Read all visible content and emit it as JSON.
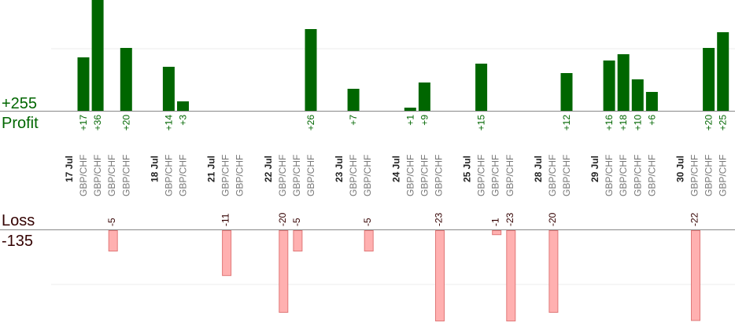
{
  "chart_data": {
    "type": "bar",
    "profit_total": "+255",
    "profit_label": "Profit",
    "loss_total": "-135",
    "loss_label": "Loss",
    "colors": {
      "profit": "#006600",
      "loss": "#ffb0b0",
      "loss_stroke": "#e07878",
      "axis": "#888888",
      "grid": "#eeeeee"
    },
    "days": [
      {
        "date": "17 Jul",
        "trades": [
          {
            "pair": "GBP/CHF",
            "value": 17,
            "label": "+17"
          },
          {
            "pair": "GBP/CHF",
            "value": 36,
            "label": "+36"
          },
          {
            "pair": "GBP/CHF",
            "value": -5,
            "label": "-5"
          },
          {
            "pair": "GBP/CHF",
            "value": 20,
            "label": "+20"
          }
        ]
      },
      {
        "date": "18 Jul",
        "trades": [
          {
            "pair": "GBP/CHF",
            "value": 14,
            "label": "+14"
          },
          {
            "pair": "GBP/CHF",
            "value": 3,
            "label": "+3"
          }
        ]
      },
      {
        "date": "21 Jul",
        "trades": [
          {
            "pair": "GBP/CHF",
            "value": -11,
            "label": "-11"
          },
          {
            "pair": "GBP/CHF",
            "value": 0,
            "label": ""
          }
        ]
      },
      {
        "date": "22 Jul",
        "trades": [
          {
            "pair": "GBP/CHF",
            "value": -20,
            "label": "-20"
          },
          {
            "pair": "GBP/CHF",
            "value": -5,
            "label": "-5"
          },
          {
            "pair": "GBP/CHF",
            "value": 26,
            "label": "+26"
          }
        ]
      },
      {
        "date": "23 Jul",
        "trades": [
          {
            "pair": "GBP/CHF",
            "value": 7,
            "label": "+7"
          },
          {
            "pair": "GBP/CHF",
            "value": -5,
            "label": "-5"
          }
        ]
      },
      {
        "date": "24 Jul",
        "trades": [
          {
            "pair": "GBP/CHF",
            "value": 1,
            "label": "+1"
          },
          {
            "pair": "GBP/CHF",
            "value": 9,
            "label": "+9"
          },
          {
            "pair": "GBP/CHF",
            "value": -23,
            "label": "-23"
          }
        ]
      },
      {
        "date": "25 Jul",
        "trades": [
          {
            "pair": "GBP/CHF",
            "value": 15,
            "label": "+15"
          },
          {
            "pair": "GBP/CHF",
            "value": -1,
            "label": "-1"
          },
          {
            "pair": "GBP/CHF",
            "value": -23,
            "label": "-23"
          }
        ]
      },
      {
        "date": "28 Jul",
        "trades": [
          {
            "pair": "GBP/CHF",
            "value": -20,
            "label": "-20"
          },
          {
            "pair": "GBP/CHF",
            "value": 12,
            "label": "+12"
          }
        ]
      },
      {
        "date": "29 Jul",
        "trades": [
          {
            "pair": "GBP/CHF",
            "value": 16,
            "label": "+16"
          },
          {
            "pair": "GBP/CHF",
            "value": 18,
            "label": "+18"
          },
          {
            "pair": "GBP/CHF",
            "value": 10,
            "label": "+10"
          },
          {
            "pair": "GBP/CHF",
            "value": 6,
            "label": "+6"
          }
        ]
      },
      {
        "date": "30 Jul",
        "trades": [
          {
            "pair": "GBP/CHF",
            "value": -22,
            "label": "-22"
          },
          {
            "pair": "GBP/CHF",
            "value": 20,
            "label": "+20"
          },
          {
            "pair": "GBP/CHF",
            "value": 25,
            "label": "+25"
          }
        ]
      }
    ]
  }
}
